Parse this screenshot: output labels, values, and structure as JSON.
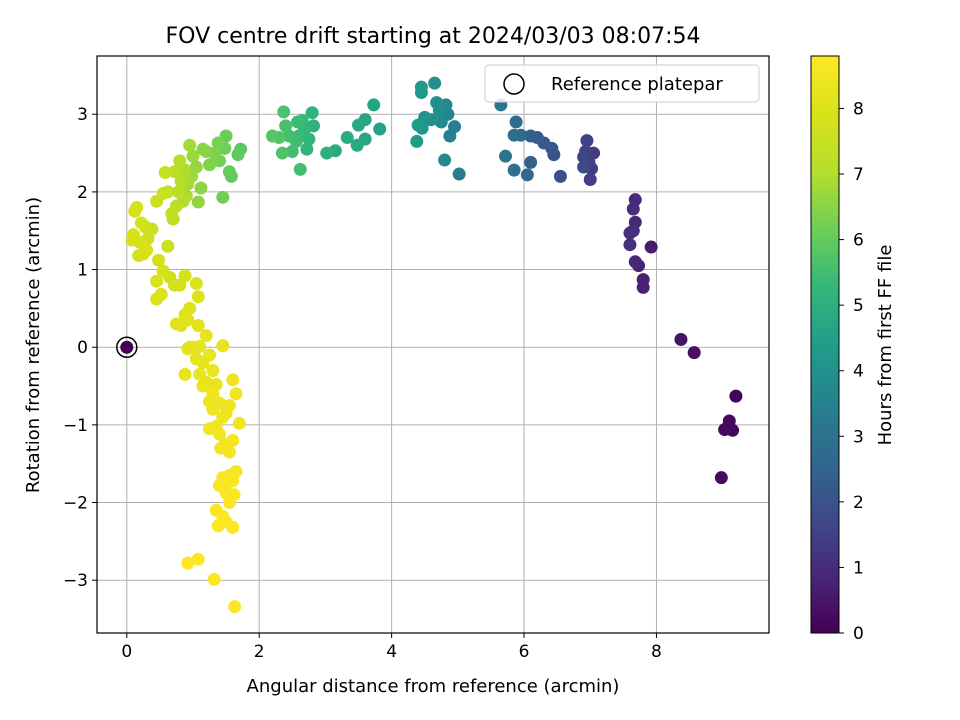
{
  "chart_data": {
    "type": "scatter",
    "title": "FOV centre drift starting at 2024/03/03 08:07:54",
    "xlabel": "Angular distance from reference (arcmin)",
    "ylabel": "Rotation from reference (arcmin)",
    "xlim": [
      -0.45,
      9.7
    ],
    "ylim": [
      -3.68,
      3.75
    ],
    "xticks": [
      0,
      2,
      4,
      6,
      8
    ],
    "yticks": [
      -3,
      -2,
      -1,
      0,
      1,
      2,
      3
    ],
    "grid": true,
    "legend": {
      "position": "top-right",
      "entries": [
        "Reference platepar"
      ]
    },
    "reference_point": {
      "x": 0,
      "y": 0
    },
    "colorbar": {
      "label": "Hours from first FF file",
      "ticks": [
        0,
        1,
        2,
        3,
        4,
        5,
        6,
        7,
        8
      ],
      "range": [
        0,
        8.8
      ],
      "colormap": "viridis"
    },
    "points": [
      [
        0.0,
        0.0,
        0.0
      ],
      [
        9.2,
        -0.63,
        0.1
      ],
      [
        9.1,
        -0.95,
        0.15
      ],
      [
        9.15,
        -1.07,
        0.2
      ],
      [
        9.03,
        -1.06,
        0.2
      ],
      [
        8.98,
        -1.68,
        0.25
      ],
      [
        8.57,
        -0.07,
        0.35
      ],
      [
        8.37,
        0.1,
        0.45
      ],
      [
        7.92,
        1.29,
        0.6
      ],
      [
        7.8,
        0.87,
        0.7
      ],
      [
        7.8,
        0.77,
        0.75
      ],
      [
        7.73,
        1.05,
        0.8
      ],
      [
        7.68,
        1.1,
        0.85
      ],
      [
        7.68,
        1.61,
        0.9
      ],
      [
        7.68,
        1.9,
        0.95
      ],
      [
        7.65,
        1.78,
        1.0
      ],
      [
        7.65,
        1.5,
        1.05
      ],
      [
        7.6,
        1.47,
        1.1
      ],
      [
        7.6,
        1.32,
        1.15
      ],
      [
        7.05,
        2.5,
        1.35
      ],
      [
        7.02,
        2.3,
        1.4
      ],
      [
        7.0,
        2.16,
        1.45
      ],
      [
        6.98,
        2.38,
        1.5
      ],
      [
        6.95,
        2.66,
        1.55
      ],
      [
        6.93,
        2.52,
        1.6
      ],
      [
        6.9,
        2.45,
        1.65
      ],
      [
        6.9,
        2.32,
        1.7
      ],
      [
        6.55,
        2.2,
        1.9
      ],
      [
        6.45,
        2.48,
        2.0
      ],
      [
        6.42,
        2.56,
        2.1
      ],
      [
        6.3,
        2.63,
        2.2
      ],
      [
        6.2,
        2.7,
        2.3
      ],
      [
        6.1,
        2.72,
        2.4
      ],
      [
        6.1,
        2.38,
        2.5
      ],
      [
        6.05,
        2.22,
        2.6
      ],
      [
        5.95,
        2.73,
        2.7
      ],
      [
        5.88,
        2.9,
        2.8
      ],
      [
        5.85,
        2.73,
        2.85
      ],
      [
        5.85,
        2.28,
        2.9
      ],
      [
        5.72,
        2.46,
        3.0
      ],
      [
        5.65,
        3.12,
        3.1
      ],
      [
        5.02,
        2.23,
        3.3
      ],
      [
        4.95,
        2.84,
        3.4
      ],
      [
        4.88,
        2.72,
        3.5
      ],
      [
        4.85,
        3.0,
        3.6
      ],
      [
        4.82,
        3.12,
        3.7
      ],
      [
        4.8,
        2.41,
        3.75
      ],
      [
        4.75,
        2.9,
        3.8
      ],
      [
        4.72,
        3.05,
        3.85
      ],
      [
        4.68,
        3.15,
        3.9
      ],
      [
        4.65,
        3.4,
        3.95
      ],
      [
        4.6,
        2.93,
        4.0
      ],
      [
        4.5,
        2.96,
        4.05
      ],
      [
        4.48,
        2.9,
        4.1
      ],
      [
        4.46,
        2.82,
        4.15
      ],
      [
        4.45,
        3.28,
        4.2
      ],
      [
        4.45,
        3.35,
        4.25
      ],
      [
        4.4,
        2.86,
        4.3
      ],
      [
        4.38,
        2.65,
        4.35
      ],
      [
        3.82,
        2.81,
        4.55
      ],
      [
        3.73,
        3.12,
        4.6
      ],
      [
        3.6,
        2.93,
        4.65
      ],
      [
        3.6,
        2.68,
        4.7
      ],
      [
        3.5,
        2.86,
        4.75
      ],
      [
        3.48,
        2.6,
        4.8
      ],
      [
        3.33,
        2.7,
        4.85
      ],
      [
        3.15,
        2.53,
        4.9
      ],
      [
        3.02,
        2.5,
        5.0
      ],
      [
        2.82,
        2.85,
        5.05
      ],
      [
        2.8,
        3.02,
        5.1
      ],
      [
        2.75,
        2.68,
        5.15
      ],
      [
        2.72,
        2.55,
        5.2
      ],
      [
        2.68,
        2.8,
        5.25
      ],
      [
        2.65,
        2.92,
        5.3
      ],
      [
        2.6,
        2.72,
        5.35
      ],
      [
        2.58,
        2.9,
        5.4
      ],
      [
        2.56,
        2.65,
        5.45
      ],
      [
        2.5,
        2.52,
        5.5
      ],
      [
        2.45,
        2.72,
        5.55
      ],
      [
        2.4,
        2.85,
        5.6
      ],
      [
        2.37,
        3.03,
        5.65
      ],
      [
        2.35,
        2.5,
        5.7
      ],
      [
        2.3,
        2.7,
        5.75
      ],
      [
        2.62,
        2.29,
        5.55
      ],
      [
        2.2,
        2.72,
        5.8
      ],
      [
        1.72,
        2.55,
        5.9
      ],
      [
        1.68,
        2.48,
        5.95
      ],
      [
        1.58,
        2.2,
        6.0
      ],
      [
        1.55,
        2.26,
        6.05
      ],
      [
        1.5,
        2.72,
        6.1
      ],
      [
        1.48,
        2.56,
        6.15
      ],
      [
        1.45,
        1.93,
        6.2
      ],
      [
        1.4,
        2.4,
        6.25
      ],
      [
        1.38,
        2.63,
        6.3
      ],
      [
        1.32,
        2.5,
        6.35
      ],
      [
        1.25,
        2.35,
        6.4
      ],
      [
        1.2,
        2.52,
        6.45
      ],
      [
        1.15,
        2.55,
        6.5
      ],
      [
        1.12,
        2.05,
        6.55
      ],
      [
        1.08,
        1.87,
        6.6
      ],
      [
        1.05,
        2.32,
        6.65
      ],
      [
        1.0,
        2.46,
        6.7
      ],
      [
        0.98,
        2.2,
        6.75
      ],
      [
        0.95,
        2.6,
        6.8
      ],
      [
        0.92,
        2.1,
        6.85
      ],
      [
        0.9,
        1.95,
        6.9
      ],
      [
        0.88,
        2.28,
        6.95
      ],
      [
        0.85,
        1.88,
        7.0
      ],
      [
        0.82,
        2.14,
        7.05
      ],
      [
        0.8,
        2.4,
        7.1
      ],
      [
        0.78,
        2.0,
        7.15
      ],
      [
        0.75,
        1.82,
        7.2
      ],
      [
        0.72,
        2.26,
        7.25
      ],
      [
        0.7,
        1.65,
        7.3
      ],
      [
        0.68,
        1.72,
        7.35
      ],
      [
        0.62,
        2.0,
        7.4
      ],
      [
        0.58,
        2.25,
        7.45
      ],
      [
        0.55,
        1.98,
        7.5
      ],
      [
        0.45,
        1.88,
        7.55
      ],
      [
        0.38,
        1.52,
        7.6
      ],
      [
        0.32,
        1.4,
        7.65
      ],
      [
        0.28,
        1.55,
        7.7
      ],
      [
        0.22,
        1.6,
        7.75
      ],
      [
        0.18,
        1.18,
        7.8
      ],
      [
        0.15,
        1.8,
        7.85
      ],
      [
        0.12,
        1.75,
        7.85
      ],
      [
        0.1,
        1.45,
        7.9
      ],
      [
        0.08,
        1.38,
        7.9
      ],
      [
        0.2,
        1.35,
        7.9
      ],
      [
        0.25,
        1.2,
        7.95
      ],
      [
        0.3,
        1.25,
        7.95
      ],
      [
        0.62,
        1.3,
        7.6
      ],
      [
        0.65,
        0.9,
        7.7
      ],
      [
        0.72,
        0.8,
        7.75
      ],
      [
        0.8,
        0.8,
        7.8
      ],
      [
        0.88,
        0.92,
        7.85
      ],
      [
        0.55,
        0.98,
        7.85
      ],
      [
        0.48,
        1.12,
        7.8
      ],
      [
        0.45,
        0.85,
        7.9
      ],
      [
        0.52,
        0.68,
        8.0
      ],
      [
        0.45,
        0.62,
        8.0
      ],
      [
        0.88,
        0.42,
        8.05
      ],
      [
        0.95,
        0.5,
        8.05
      ],
      [
        1.05,
        0.82,
        8.0
      ],
      [
        1.08,
        0.65,
        8.05
      ],
      [
        0.75,
        0.3,
        8.1
      ],
      [
        0.82,
        0.28,
        8.1
      ],
      [
        0.92,
        0.35,
        8.1
      ],
      [
        1.08,
        0.28,
        8.15
      ],
      [
        0.95,
        0.0,
        8.15
      ],
      [
        0.92,
        -0.02,
        8.2
      ],
      [
        1.0,
        0.0,
        8.2
      ],
      [
        1.05,
        -0.15,
        8.25
      ],
      [
        1.1,
        0.01,
        8.25
      ],
      [
        1.15,
        -0.2,
        8.25
      ],
      [
        1.2,
        0.15,
        8.25
      ],
      [
        1.25,
        -0.1,
        8.3
      ],
      [
        1.3,
        -0.3,
        8.3
      ],
      [
        1.35,
        -0.48,
        8.3
      ],
      [
        1.45,
        0.02,
        8.3
      ],
      [
        0.88,
        -0.35,
        8.3
      ],
      [
        1.1,
        -0.35,
        8.35
      ],
      [
        1.15,
        -0.5,
        8.35
      ],
      [
        1.2,
        -0.45,
        8.35
      ],
      [
        1.25,
        -0.7,
        8.4
      ],
      [
        1.3,
        -0.6,
        8.4
      ],
      [
        1.4,
        -0.72,
        8.4
      ],
      [
        1.45,
        -0.9,
        8.45
      ],
      [
        1.5,
        -0.85,
        8.45
      ],
      [
        1.55,
        -0.75,
        8.45
      ],
      [
        1.6,
        -0.42,
        8.45
      ],
      [
        1.65,
        -0.6,
        8.5
      ],
      [
        1.7,
        -0.98,
        8.5
      ],
      [
        1.3,
        -0.8,
        8.5
      ],
      [
        1.35,
        -1.02,
        8.5
      ],
      [
        1.25,
        -1.05,
        8.55
      ],
      [
        1.4,
        -1.12,
        8.55
      ],
      [
        1.48,
        -1.25,
        8.55
      ],
      [
        1.55,
        -1.35,
        8.6
      ],
      [
        1.6,
        -1.2,
        8.6
      ],
      [
        1.42,
        -1.3,
        8.6
      ],
      [
        1.55,
        -1.65,
        8.65
      ],
      [
        1.6,
        -1.72,
        8.65
      ],
      [
        1.65,
        -1.6,
        8.65
      ],
      [
        1.45,
        -1.68,
        8.7
      ],
      [
        1.48,
        -1.8,
        8.7
      ],
      [
        1.4,
        -1.78,
        8.7
      ],
      [
        1.5,
        -1.88,
        8.7
      ],
      [
        1.55,
        -2.0,
        8.72
      ],
      [
        1.35,
        -2.1,
        8.72
      ],
      [
        1.45,
        -2.18,
        8.75
      ],
      [
        1.5,
        -2.25,
        8.75
      ],
      [
        1.6,
        -2.32,
        8.75
      ],
      [
        1.38,
        -2.3,
        8.75
      ],
      [
        1.62,
        -1.9,
        8.72
      ],
      [
        0.92,
        -2.78,
        8.8
      ],
      [
        1.08,
        -2.73,
        8.8
      ],
      [
        1.32,
        -2.99,
        8.8
      ],
      [
        1.63,
        -3.34,
        8.8
      ]
    ]
  }
}
